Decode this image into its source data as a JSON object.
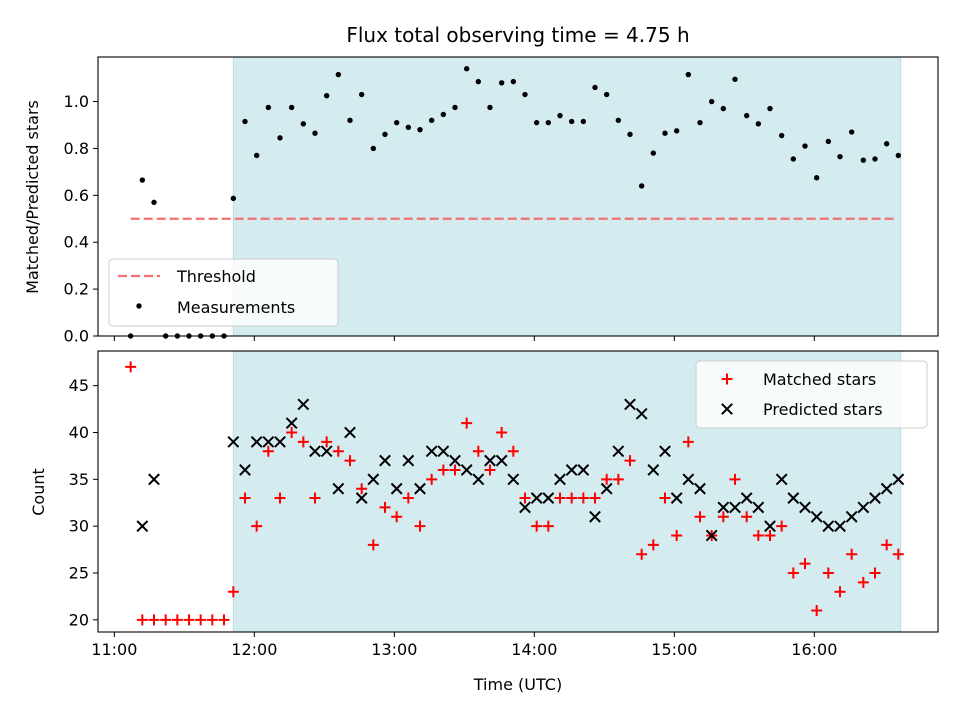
{
  "figure": {
    "title": "Flux total observing time = 4.75 h"
  },
  "colors": {
    "shade": "#d4ebf0",
    "threshold": "#f07272",
    "measurement": "#000000",
    "matched": "#ff0000",
    "predicted": "#000000"
  },
  "chart_data": [
    {
      "type": "scatter",
      "panel": "top",
      "title": "Flux total observing time = 4.75 h",
      "xlabel": "",
      "ylabel": "Matched/Predicted stars",
      "xlim": [
        "10:53",
        "16:53"
      ],
      "ylim": [
        0,
        1.19
      ],
      "yticks": [
        "0.0",
        "0.2",
        "0.4",
        "0.6",
        "0.8",
        "1.0"
      ],
      "grid": false,
      "legend_position": "lower-left",
      "shaded_region": [
        "11:51",
        "16:37"
      ],
      "threshold": {
        "name": "Threshold",
        "x": [
          "11:07",
          "16:35"
        ],
        "y": 0.5
      },
      "series": [
        {
          "name": "Measurements",
          "points": [
            [
              "11:07",
              0.0
            ],
            [
              "11:12",
              0.665
            ],
            [
              "11:17",
              0.57
            ],
            [
              "11:22",
              0.0
            ],
            [
              "11:27",
              0.0
            ],
            [
              "11:32",
              0.0
            ],
            [
              "11:37",
              0.0
            ],
            [
              "11:42",
              0.0
            ],
            [
              "11:47",
              0.0
            ],
            [
              "11:51",
              0.587
            ],
            [
              "11:56",
              0.915
            ],
            [
              "12:01",
              0.77
            ],
            [
              "12:06",
              0.975
            ],
            [
              "12:11",
              0.845
            ],
            [
              "12:16",
              0.975
            ],
            [
              "12:21",
              0.905
            ],
            [
              "12:26",
              0.865
            ],
            [
              "12:31",
              1.025
            ],
            [
              "12:36",
              1.115
            ],
            [
              "12:41",
              0.92
            ],
            [
              "12:46",
              1.03
            ],
            [
              "12:51",
              0.8
            ],
            [
              "12:56",
              0.86
            ],
            [
              "13:01",
              0.91
            ],
            [
              "13:06",
              0.89
            ],
            [
              "13:11",
              0.88
            ],
            [
              "13:16",
              0.92
            ],
            [
              "13:21",
              0.945
            ],
            [
              "13:26",
              0.975
            ],
            [
              "13:31",
              1.14
            ],
            [
              "13:36",
              1.085
            ],
            [
              "13:41",
              0.975
            ],
            [
              "13:46",
              1.08
            ],
            [
              "13:51",
              1.085
            ],
            [
              "13:56",
              1.03
            ],
            [
              "14:01",
              0.91
            ],
            [
              "14:06",
              0.91
            ],
            [
              "14:11",
              0.94
            ],
            [
              "14:16",
              0.915
            ],
            [
              "14:21",
              0.915
            ],
            [
              "14:26",
              1.06
            ],
            [
              "14:31",
              1.03
            ],
            [
              "14:36",
              0.92
            ],
            [
              "14:41",
              0.86
            ],
            [
              "14:46",
              0.64
            ],
            [
              "14:51",
              0.78
            ],
            [
              "14:56",
              0.865
            ],
            [
              "15:01",
              0.875
            ],
            [
              "15:06",
              1.115
            ],
            [
              "15:11",
              0.91
            ],
            [
              "15:16",
              1.0
            ],
            [
              "15:21",
              0.97
            ],
            [
              "15:26",
              1.095
            ],
            [
              "15:31",
              0.94
            ],
            [
              "15:36",
              0.905
            ],
            [
              "15:41",
              0.97
            ],
            [
              "15:46",
              0.855
            ],
            [
              "15:51",
              0.755
            ],
            [
              "15:56",
              0.81
            ],
            [
              "16:01",
              0.675
            ],
            [
              "16:06",
              0.83
            ],
            [
              "16:11",
              0.765
            ],
            [
              "16:16",
              0.87
            ],
            [
              "16:21",
              0.75
            ],
            [
              "16:26",
              0.755
            ],
            [
              "16:31",
              0.82
            ],
            [
              "16:36",
              0.77
            ]
          ]
        }
      ]
    },
    {
      "type": "scatter",
      "panel": "bottom",
      "xlabel": "Time (UTC)",
      "ylabel": "Count",
      "xlim": [
        "10:53",
        "16:53"
      ],
      "ylim": [
        18.7,
        48.7
      ],
      "xticks": [
        "11:00",
        "12:00",
        "13:00",
        "14:00",
        "15:00",
        "16:00"
      ],
      "yticks": [
        "20",
        "25",
        "30",
        "35",
        "40",
        "45"
      ],
      "grid": false,
      "legend_position": "upper-right",
      "shaded_region": [
        "11:51",
        "16:37"
      ],
      "series": [
        {
          "name": "Matched stars",
          "marker": "plus",
          "points": [
            [
              "11:07",
              47
            ],
            [
              "11:12",
              20
            ],
            [
              "11:17",
              20
            ],
            [
              "11:22",
              20
            ],
            [
              "11:27",
              20
            ],
            [
              "11:32",
              20
            ],
            [
              "11:37",
              20
            ],
            [
              "11:42",
              20
            ],
            [
              "11:47",
              20
            ],
            [
              "11:51",
              23
            ],
            [
              "11:56",
              33
            ],
            [
              "12:01",
              30
            ],
            [
              "12:06",
              38
            ],
            [
              "12:11",
              33
            ],
            [
              "12:16",
              40
            ],
            [
              "12:21",
              39
            ],
            [
              "12:26",
              33
            ],
            [
              "12:31",
              39
            ],
            [
              "12:36",
              38
            ],
            [
              "12:41",
              37
            ],
            [
              "12:46",
              34
            ],
            [
              "12:51",
              28
            ],
            [
              "12:56",
              32
            ],
            [
              "13:01",
              31
            ],
            [
              "13:06",
              33
            ],
            [
              "13:11",
              30
            ],
            [
              "13:16",
              35
            ],
            [
              "13:21",
              36
            ],
            [
              "13:26",
              36
            ],
            [
              "13:31",
              41
            ],
            [
              "13:36",
              38
            ],
            [
              "13:41",
              36
            ],
            [
              "13:46",
              40
            ],
            [
              "13:51",
              38
            ],
            [
              "13:56",
              33
            ],
            [
              "14:01",
              30
            ],
            [
              "14:06",
              30
            ],
            [
              "14:11",
              33
            ],
            [
              "14:16",
              33
            ],
            [
              "14:21",
              33
            ],
            [
              "14:26",
              33
            ],
            [
              "14:31",
              35
            ],
            [
              "14:36",
              35
            ],
            [
              "14:41",
              37
            ],
            [
              "14:46",
              27
            ],
            [
              "14:51",
              28
            ],
            [
              "14:56",
              33
            ],
            [
              "15:01",
              29
            ],
            [
              "15:06",
              39
            ],
            [
              "15:11",
              31
            ],
            [
              "15:16",
              29
            ],
            [
              "15:21",
              31
            ],
            [
              "15:26",
              35
            ],
            [
              "15:31",
              31
            ],
            [
              "15:36",
              29
            ],
            [
              "15:41",
              29
            ],
            [
              "15:46",
              30
            ],
            [
              "15:51",
              25
            ],
            [
              "15:56",
              26
            ],
            [
              "16:01",
              21
            ],
            [
              "16:06",
              25
            ],
            [
              "16:11",
              23
            ],
            [
              "16:16",
              27
            ],
            [
              "16:21",
              24
            ],
            [
              "16:26",
              25
            ],
            [
              "16:31",
              28
            ],
            [
              "16:36",
              27
            ]
          ]
        },
        {
          "name": "Predicted stars",
          "marker": "x",
          "points": [
            [
              "11:12",
              30
            ],
            [
              "11:17",
              35
            ],
            [
              "11:51",
              39
            ],
            [
              "11:56",
              36
            ],
            [
              "12:01",
              39
            ],
            [
              "12:06",
              39
            ],
            [
              "12:11",
              39
            ],
            [
              "12:16",
              41
            ],
            [
              "12:21",
              43
            ],
            [
              "12:26",
              38
            ],
            [
              "12:31",
              38
            ],
            [
              "12:36",
              34
            ],
            [
              "12:41",
              40
            ],
            [
              "12:46",
              33
            ],
            [
              "12:51",
              35
            ],
            [
              "12:56",
              37
            ],
            [
              "13:01",
              34
            ],
            [
              "13:06",
              37
            ],
            [
              "13:11",
              34
            ],
            [
              "13:16",
              38
            ],
            [
              "13:21",
              38
            ],
            [
              "13:26",
              37
            ],
            [
              "13:31",
              36
            ],
            [
              "13:36",
              35
            ],
            [
              "13:41",
              37
            ],
            [
              "13:46",
              37
            ],
            [
              "13:51",
              35
            ],
            [
              "13:56",
              32
            ],
            [
              "14:01",
              33
            ],
            [
              "14:06",
              33
            ],
            [
              "14:11",
              35
            ],
            [
              "14:16",
              36
            ],
            [
              "14:21",
              36
            ],
            [
              "14:26",
              31
            ],
            [
              "14:31",
              34
            ],
            [
              "14:36",
              38
            ],
            [
              "14:41",
              43
            ],
            [
              "14:46",
              42
            ],
            [
              "14:51",
              36
            ],
            [
              "14:56",
              38
            ],
            [
              "15:01",
              33
            ],
            [
              "15:06",
              35
            ],
            [
              "15:11",
              34
            ],
            [
              "15:16",
              29
            ],
            [
              "15:21",
              32
            ],
            [
              "15:26",
              32
            ],
            [
              "15:31",
              33
            ],
            [
              "15:36",
              32
            ],
            [
              "15:41",
              30
            ],
            [
              "15:46",
              35
            ],
            [
              "15:51",
              33
            ],
            [
              "15:56",
              32
            ],
            [
              "16:01",
              31
            ],
            [
              "16:06",
              30
            ],
            [
              "16:11",
              30
            ],
            [
              "16:16",
              31
            ],
            [
              "16:21",
              32
            ],
            [
              "16:26",
              33
            ],
            [
              "16:31",
              34
            ],
            [
              "16:36",
              35
            ]
          ]
        }
      ]
    }
  ]
}
